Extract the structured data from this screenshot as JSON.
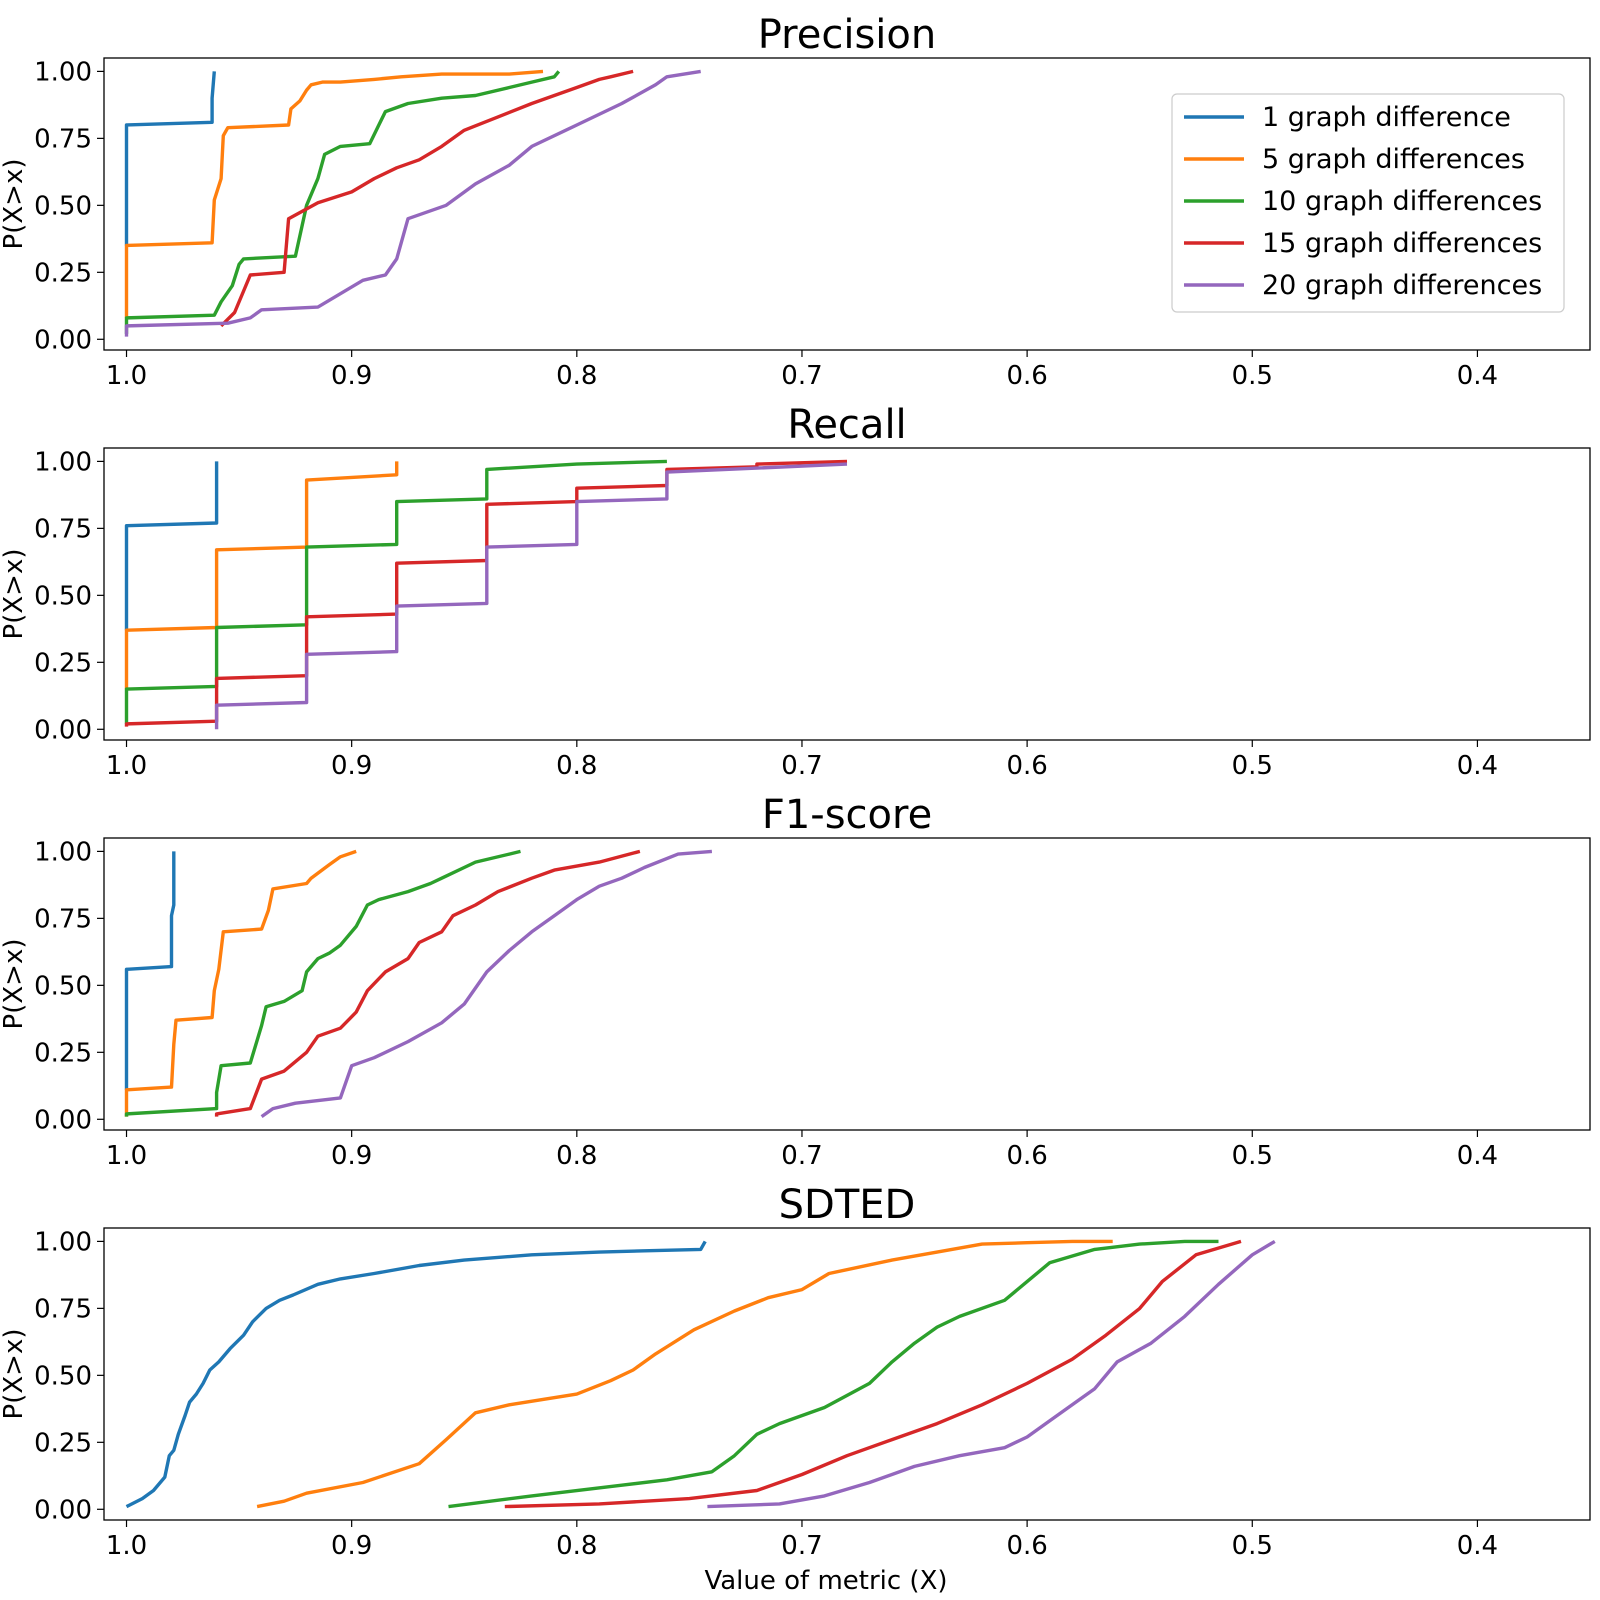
{
  "xlabel": "Value of metric (X)",
  "ylabel": "P(X>x)",
  "colors": [
    "#1f77b4",
    "#ff7f0e",
    "#2ca02c",
    "#d62728",
    "#9467bd"
  ],
  "legend": {
    "placement": "upper right of first panel",
    "entries": [
      "1 graph difference",
      "5 graph differences",
      "10 graph differences",
      "15 graph differences",
      "20 graph differences"
    ]
  },
  "chart_data": [
    {
      "type": "line",
      "title": "Precision",
      "xlim": [
        1.01,
        0.35
      ],
      "ylim": [
        -0.04,
        1.05
      ],
      "xticks": [
        "1.0",
        "0.9",
        "0.8",
        "0.7",
        "0.6",
        "0.5",
        "0.4"
      ],
      "yticks": [
        "0.00",
        "0.25",
        "0.50",
        "0.75",
        "1.00"
      ],
      "series": [
        {
          "x": [
            1.0,
            1.0,
            0.962,
            0.962,
            0.961
          ],
          "y": [
            0.35,
            0.8,
            0.81,
            0.9,
            1.0
          ]
        },
        {
          "x": [
            1.0,
            1.0,
            0.962,
            0.961,
            0.958,
            0.957,
            0.955,
            0.928,
            0.927,
            0.923,
            0.92,
            0.918,
            0.913,
            0.905,
            0.89,
            0.878,
            0.86,
            0.83,
            0.815
          ],
          "y": [
            0.08,
            0.35,
            0.36,
            0.52,
            0.6,
            0.76,
            0.79,
            0.8,
            0.86,
            0.89,
            0.93,
            0.95,
            0.96,
            0.96,
            0.97,
            0.98,
            0.99,
            0.99,
            1.0
          ]
        },
        {
          "x": [
            1.0,
            1.0,
            0.961,
            0.958,
            0.953,
            0.95,
            0.948,
            0.925,
            0.92,
            0.915,
            0.912,
            0.905,
            0.892,
            0.885,
            0.875,
            0.86,
            0.845,
            0.83,
            0.82,
            0.81,
            0.808
          ],
          "y": [
            0.02,
            0.08,
            0.09,
            0.14,
            0.2,
            0.28,
            0.3,
            0.31,
            0.5,
            0.6,
            0.69,
            0.72,
            0.73,
            0.85,
            0.88,
            0.9,
            0.91,
            0.94,
            0.96,
            0.98,
            1.0
          ]
        },
        {
          "x": [
            0.958,
            0.952,
            0.945,
            0.93,
            0.928,
            0.915,
            0.9,
            0.89,
            0.88,
            0.87,
            0.86,
            0.85,
            0.835,
            0.82,
            0.81,
            0.8,
            0.79,
            0.785,
            0.775
          ],
          "y": [
            0.05,
            0.1,
            0.24,
            0.25,
            0.45,
            0.51,
            0.55,
            0.6,
            0.64,
            0.67,
            0.72,
            0.78,
            0.83,
            0.88,
            0.91,
            0.94,
            0.97,
            0.98,
            1.0
          ]
        },
        {
          "x": [
            1.0,
            1.0,
            0.955,
            0.945,
            0.94,
            0.915,
            0.905,
            0.895,
            0.885,
            0.88,
            0.875,
            0.858,
            0.845,
            0.83,
            0.82,
            0.8,
            0.78,
            0.765,
            0.76,
            0.745
          ],
          "y": [
            0.01,
            0.05,
            0.06,
            0.08,
            0.11,
            0.12,
            0.17,
            0.22,
            0.24,
            0.3,
            0.45,
            0.5,
            0.58,
            0.65,
            0.72,
            0.8,
            0.88,
            0.95,
            0.98,
            1.0
          ]
        }
      ]
    },
    {
      "type": "line",
      "title": "Recall",
      "xlim": [
        1.01,
        0.35
      ],
      "ylim": [
        -0.04,
        1.05
      ],
      "xticks": [
        "1.0",
        "0.9",
        "0.8",
        "0.7",
        "0.6",
        "0.5",
        "0.4"
      ],
      "yticks": [
        "0.00",
        "0.25",
        "0.50",
        "0.75",
        "1.00"
      ],
      "series": [
        {
          "x": [
            1.0,
            1.0,
            0.96,
            0.96
          ],
          "y": [
            0.37,
            0.76,
            0.77,
            1.0
          ]
        },
        {
          "x": [
            1.0,
            1.0,
            0.96,
            0.96,
            0.92,
            0.92,
            0.88,
            0.88
          ],
          "y": [
            0.15,
            0.37,
            0.38,
            0.67,
            0.68,
            0.93,
            0.95,
            1.0
          ]
        },
        {
          "x": [
            1.0,
            1.0,
            0.96,
            0.96,
            0.92,
            0.92,
            0.88,
            0.88,
            0.84,
            0.84,
            0.8,
            0.76
          ],
          "y": [
            0.02,
            0.15,
            0.16,
            0.38,
            0.39,
            0.68,
            0.69,
            0.85,
            0.86,
            0.97,
            0.99,
            1.0
          ]
        },
        {
          "x": [
            1.0,
            1.0,
            0.96,
            0.96,
            0.92,
            0.92,
            0.88,
            0.88,
            0.84,
            0.84,
            0.8,
            0.8,
            0.76,
            0.76,
            0.72,
            0.72,
            0.68
          ],
          "y": [
            0.01,
            0.02,
            0.03,
            0.19,
            0.2,
            0.42,
            0.43,
            0.62,
            0.63,
            0.84,
            0.85,
            0.9,
            0.91,
            0.97,
            0.98,
            0.99,
            1.0
          ]
        },
        {
          "x": [
            0.96,
            0.96,
            0.92,
            0.92,
            0.88,
            0.88,
            0.84,
            0.84,
            0.8,
            0.8,
            0.76,
            0.76,
            0.68
          ],
          "y": [
            0.0,
            0.09,
            0.1,
            0.28,
            0.29,
            0.46,
            0.47,
            0.68,
            0.69,
            0.85,
            0.86,
            0.96,
            0.99
          ]
        }
      ]
    },
    {
      "type": "line",
      "title": "F1-score",
      "xlim": [
        1.01,
        0.35
      ],
      "ylim": [
        -0.04,
        1.05
      ],
      "xticks": [
        "1.0",
        "0.9",
        "0.8",
        "0.7",
        "0.6",
        "0.5",
        "0.4"
      ],
      "yticks": [
        "0.00",
        "0.25",
        "0.50",
        "0.75",
        "1.00"
      ],
      "series": [
        {
          "x": [
            1.0,
            1.0,
            0.98,
            0.98,
            0.979,
            0.979
          ],
          "y": [
            0.11,
            0.56,
            0.57,
            0.76,
            0.8,
            1.0
          ]
        },
        {
          "x": [
            1.0,
            1.0,
            0.98,
            0.979,
            0.978,
            0.962,
            0.961,
            0.959,
            0.957,
            0.94,
            0.937,
            0.935,
            0.92,
            0.918,
            0.91,
            0.905,
            0.898
          ],
          "y": [
            0.01,
            0.11,
            0.12,
            0.28,
            0.37,
            0.38,
            0.48,
            0.56,
            0.7,
            0.71,
            0.78,
            0.86,
            0.88,
            0.9,
            0.95,
            0.98,
            1.0
          ]
        },
        {
          "x": [
            1.0,
            1.0,
            0.96,
            0.96,
            0.958,
            0.945,
            0.94,
            0.938,
            0.93,
            0.922,
            0.92,
            0.915,
            0.91,
            0.905,
            0.898,
            0.893,
            0.888,
            0.875,
            0.865,
            0.86,
            0.85,
            0.845,
            0.83,
            0.825
          ],
          "y": [
            0.01,
            0.02,
            0.04,
            0.1,
            0.2,
            0.21,
            0.35,
            0.42,
            0.44,
            0.48,
            0.55,
            0.6,
            0.62,
            0.65,
            0.72,
            0.8,
            0.82,
            0.85,
            0.88,
            0.9,
            0.94,
            0.96,
            0.99,
            1.0
          ]
        },
        {
          "x": [
            0.96,
            0.96,
            0.945,
            0.94,
            0.93,
            0.92,
            0.915,
            0.905,
            0.898,
            0.893,
            0.885,
            0.875,
            0.87,
            0.86,
            0.855,
            0.845,
            0.835,
            0.82,
            0.81,
            0.79,
            0.772
          ],
          "y": [
            0.01,
            0.02,
            0.04,
            0.15,
            0.18,
            0.25,
            0.31,
            0.34,
            0.4,
            0.48,
            0.55,
            0.6,
            0.66,
            0.7,
            0.76,
            0.8,
            0.85,
            0.9,
            0.93,
            0.96,
            1.0
          ]
        },
        {
          "x": [
            0.94,
            0.935,
            0.925,
            0.905,
            0.9,
            0.89,
            0.875,
            0.86,
            0.85,
            0.84,
            0.83,
            0.82,
            0.81,
            0.8,
            0.79,
            0.78,
            0.77,
            0.755,
            0.74
          ],
          "y": [
            0.01,
            0.04,
            0.06,
            0.08,
            0.2,
            0.23,
            0.29,
            0.36,
            0.43,
            0.55,
            0.63,
            0.7,
            0.76,
            0.82,
            0.87,
            0.9,
            0.94,
            0.99,
            1.0
          ]
        }
      ]
    },
    {
      "type": "line",
      "title": "SDTED",
      "xlim": [
        1.01,
        0.35
      ],
      "ylim": [
        -0.04,
        1.05
      ],
      "xticks": [
        "1.0",
        "0.9",
        "0.8",
        "0.7",
        "0.6",
        "0.5",
        "0.4"
      ],
      "yticks": [
        "0.00",
        "0.25",
        "0.50",
        "0.75",
        "1.00"
      ],
      "series": [
        {
          "x": [
            1.0,
            0.993,
            0.988,
            0.983,
            0.981,
            0.979,
            0.977,
            0.974,
            0.972,
            0.969,
            0.966,
            0.963,
            0.959,
            0.954,
            0.948,
            0.944,
            0.938,
            0.932,
            0.926,
            0.915,
            0.905,
            0.89,
            0.87,
            0.85,
            0.82,
            0.79,
            0.77,
            0.745,
            0.743
          ],
          "y": [
            0.01,
            0.04,
            0.07,
            0.12,
            0.2,
            0.22,
            0.28,
            0.35,
            0.4,
            0.43,
            0.47,
            0.52,
            0.55,
            0.6,
            0.65,
            0.7,
            0.75,
            0.78,
            0.8,
            0.84,
            0.86,
            0.88,
            0.91,
            0.93,
            0.95,
            0.96,
            0.965,
            0.97,
            1.0
          ]
        },
        {
          "x": [
            0.942,
            0.93,
            0.92,
            0.895,
            0.87,
            0.858,
            0.845,
            0.83,
            0.815,
            0.8,
            0.785,
            0.775,
            0.765,
            0.748,
            0.73,
            0.715,
            0.7,
            0.688,
            0.66,
            0.64,
            0.62,
            0.6,
            0.58,
            0.562
          ],
          "y": [
            0.01,
            0.03,
            0.06,
            0.1,
            0.17,
            0.26,
            0.36,
            0.39,
            0.41,
            0.43,
            0.48,
            0.52,
            0.58,
            0.67,
            0.74,
            0.79,
            0.82,
            0.88,
            0.93,
            0.96,
            0.99,
            0.995,
            1.0,
            1.0
          ]
        },
        {
          "x": [
            0.857,
            0.82,
            0.78,
            0.76,
            0.74,
            0.73,
            0.72,
            0.71,
            0.69,
            0.67,
            0.66,
            0.65,
            0.64,
            0.63,
            0.61,
            0.6,
            0.59,
            0.57,
            0.55,
            0.53,
            0.515
          ],
          "y": [
            0.01,
            0.05,
            0.09,
            0.11,
            0.14,
            0.2,
            0.28,
            0.32,
            0.38,
            0.47,
            0.55,
            0.62,
            0.68,
            0.72,
            0.78,
            0.85,
            0.92,
            0.97,
            0.99,
            1.0,
            1.0
          ]
        },
        {
          "x": [
            0.832,
            0.79,
            0.75,
            0.72,
            0.7,
            0.68,
            0.66,
            0.64,
            0.62,
            0.6,
            0.58,
            0.565,
            0.55,
            0.54,
            0.525,
            0.505
          ],
          "y": [
            0.01,
            0.02,
            0.04,
            0.07,
            0.13,
            0.2,
            0.26,
            0.32,
            0.39,
            0.47,
            0.56,
            0.65,
            0.75,
            0.85,
            0.95,
            1.0
          ]
        },
        {
          "x": [
            0.742,
            0.71,
            0.69,
            0.67,
            0.65,
            0.63,
            0.61,
            0.6,
            0.59,
            0.57,
            0.56,
            0.545,
            0.53,
            0.515,
            0.5,
            0.49
          ],
          "y": [
            0.01,
            0.02,
            0.05,
            0.1,
            0.16,
            0.2,
            0.23,
            0.27,
            0.33,
            0.45,
            0.55,
            0.62,
            0.72,
            0.84,
            0.95,
            1.0
          ]
        }
      ]
    }
  ]
}
